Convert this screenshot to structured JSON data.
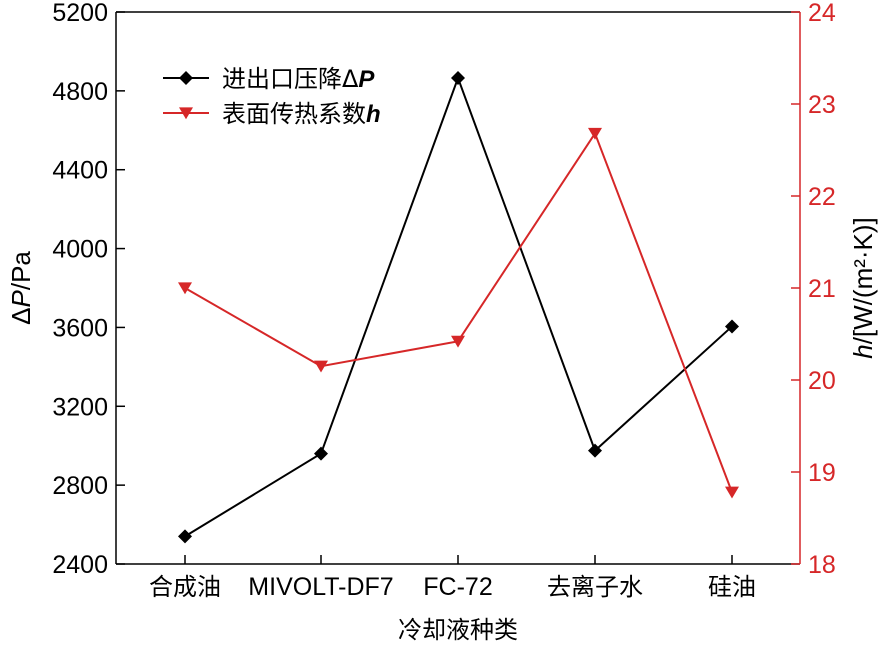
{
  "chart_data": {
    "type": "line",
    "xlabel": "冷却液种类",
    "categories": [
      "合成油",
      "MIVOLT-DF7",
      "FC-72",
      "去离子水",
      "硅油"
    ],
    "y_left": {
      "label": "ΔP/Pa",
      "label_italic": "P",
      "range": [
        2400,
        5200
      ],
      "ticks": [
        2400,
        2800,
        3200,
        3600,
        4000,
        4400,
        4800,
        5200
      ]
    },
    "y_right": {
      "label": "h/[W/(m²·K)]",
      "range": [
        18,
        24
      ],
      "ticks": [
        18,
        19,
        20,
        21,
        22,
        23,
        24
      ]
    },
    "series": [
      {
        "name": "进出口压降ΔP",
        "legend_text": "进出口压降Δ",
        "legend_italic": "P",
        "axis": "left",
        "color": "#000000",
        "marker": "diamond",
        "values": [
          2540,
          2960,
          4865,
          2975,
          3605
        ]
      },
      {
        "name": "表面传热系数h",
        "legend_text": "表面传热系数",
        "legend_italic": "h",
        "axis": "right",
        "color": "#d62728",
        "marker": "triangle-down",
        "values": [
          21.0,
          20.15,
          20.42,
          22.68,
          18.78
        ]
      }
    ],
    "right_axis_color": "#d62728",
    "legend_position": "top-left"
  }
}
